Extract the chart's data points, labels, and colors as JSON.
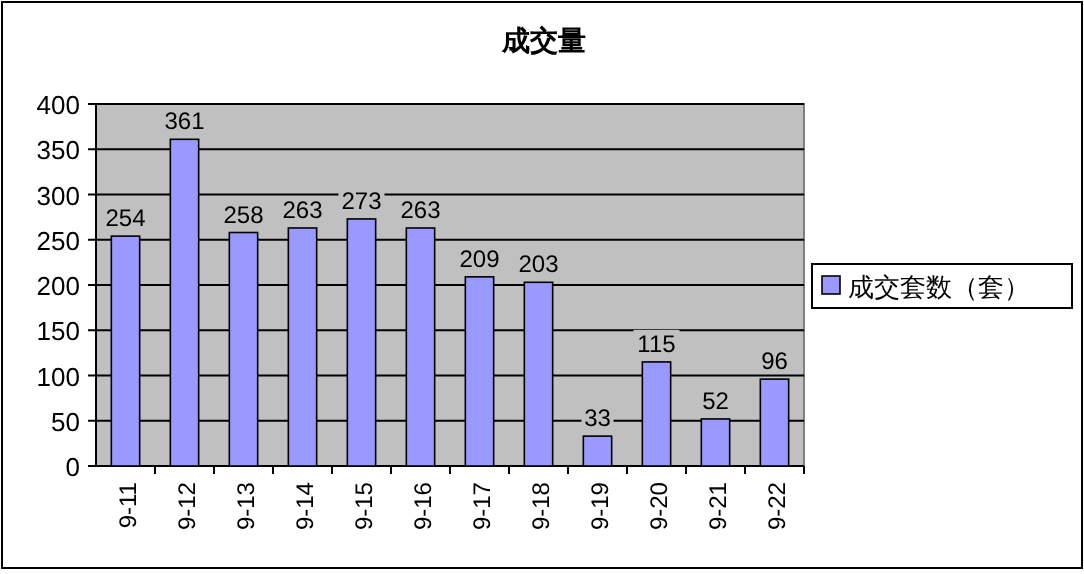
{
  "chart_data": {
    "type": "bar",
    "title": "成交量",
    "categories": [
      "9-11",
      "9-12",
      "9-13",
      "9-14",
      "9-15",
      "9-16",
      "9-17",
      "9-18",
      "9-19",
      "9-20",
      "9-21",
      "9-22"
    ],
    "series": [
      {
        "name": "成交套数（套）",
        "color": "#9999ff",
        "values": [
          254,
          361,
          258,
          263,
          273,
          263,
          209,
          203,
          33,
          115,
          52,
          96
        ]
      }
    ],
    "ylim": [
      0,
      400
    ],
    "yticks": [
      0,
      50,
      100,
      150,
      200,
      250,
      300,
      350,
      400
    ],
    "grid": "y",
    "legend": "right",
    "data_labels": true
  }
}
